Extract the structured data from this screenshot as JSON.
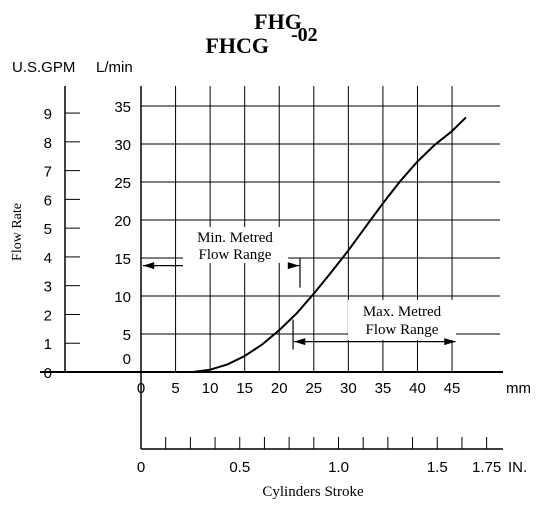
{
  "chart_data": {
    "type": "line",
    "title_line1": "FHG",
    "title_line2": "FHCG",
    "title_suffix": "-02",
    "ylabel": "Flow Rate",
    "y_gpm": {
      "unit": "U.S.GPM",
      "ticks": [
        "0",
        "1",
        "2",
        "3",
        "4",
        "5",
        "6",
        "7",
        "8",
        "9"
      ]
    },
    "y_lmin": {
      "unit": "L/min",
      "ticks": [
        "0",
        "5",
        "10",
        "15",
        "20",
        "25",
        "30",
        "35"
      ],
      "ylim": [
        0,
        38
      ]
    },
    "x_mm": {
      "unit": "mm",
      "ticks": [
        "0",
        "5",
        "10",
        "15",
        "20",
        "25",
        "30",
        "35",
        "40",
        "45"
      ],
      "xlim": [
        0,
        46.5
      ]
    },
    "x_in": {
      "unit": "IN.",
      "ticks": [
        "0",
        "0.5",
        "1.0",
        "1.5",
        "1.75"
      ],
      "values": [
        0,
        0.5,
        1.0,
        1.5,
        1.75
      ]
    },
    "xlabel": "Cylinders Stroke",
    "series": [
      {
        "x": [
          7.5,
          10,
          12.5,
          15,
          17.5,
          20,
          22.5,
          25,
          27.5,
          30,
          32.5,
          35,
          37.5,
          40,
          42.5,
          45,
          47
        ],
        "y": [
          0,
          0.3,
          1.0,
          2.1,
          3.6,
          5.5,
          7.7,
          10.3,
          13.1,
          16.0,
          19.1,
          22.2,
          25.1,
          27.7,
          29.9,
          31.7,
          33.5
        ]
      }
    ],
    "annotations": {
      "min_range": {
        "label1": "Min. Metred",
        "label2": "Flow Range",
        "value_lmin": 14,
        "x_end_mm": 23
      },
      "max_range": {
        "label1": "Max. Metred",
        "label2": "Flow Range",
        "value_lmin": 4,
        "x_start_mm": 22,
        "x_end_mm": 45.5
      }
    },
    "grid": true
  }
}
